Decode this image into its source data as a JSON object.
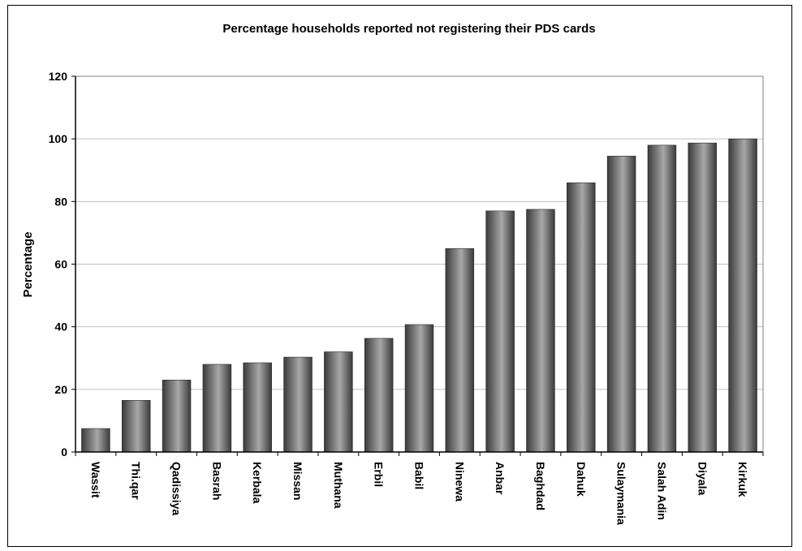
{
  "chart_data": {
    "type": "bar",
    "title": "Percentage households reported not registering their PDS cards",
    "xlabel": "",
    "ylabel": "Percentage",
    "ylim": [
      0,
      120
    ],
    "yticks": [
      0,
      20,
      40,
      60,
      80,
      100,
      120
    ],
    "grid": true,
    "legend": "none",
    "categories": [
      "Wassit",
      "Thi.qar",
      "Qadissiya",
      "Basrah",
      "Kerbala",
      "Missan",
      "Muthana",
      "Erbil",
      "Babil",
      "Ninewa",
      "Anbar",
      "Baghdad",
      "Dahuk",
      "Sulaymania",
      "Salah Adin",
      "Diyala",
      "Kirkuk"
    ],
    "values": [
      7.5,
      16.5,
      23,
      28,
      28.5,
      30.3,
      32,
      36.3,
      40.7,
      65,
      77,
      77.5,
      86,
      94.5,
      98,
      98.7,
      100
    ],
    "colors": {
      "bar_dark": "#3a3a3a",
      "bar_light": "#a8a8a8",
      "grid": "#c0c0c0"
    }
  }
}
